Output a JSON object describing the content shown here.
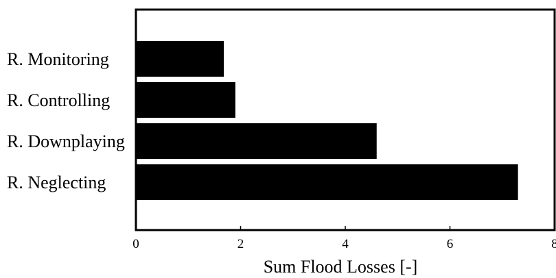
{
  "chart_data": {
    "type": "bar",
    "orientation": "horizontal",
    "categories": [
      "R. Monitoring",
      "R. Controlling",
      "R. Downplaying",
      "R. Neglecting"
    ],
    "values": [
      1.68,
      1.9,
      4.6,
      7.3
    ],
    "xlabel": "Sum Flood Losses [-]",
    "ylabel": "",
    "xlim": [
      0,
      8
    ],
    "xticks": [
      "0",
      "2",
      "4",
      "6",
      "8"
    ],
    "grid": false,
    "legend": "none",
    "bar_color": "#000000"
  }
}
